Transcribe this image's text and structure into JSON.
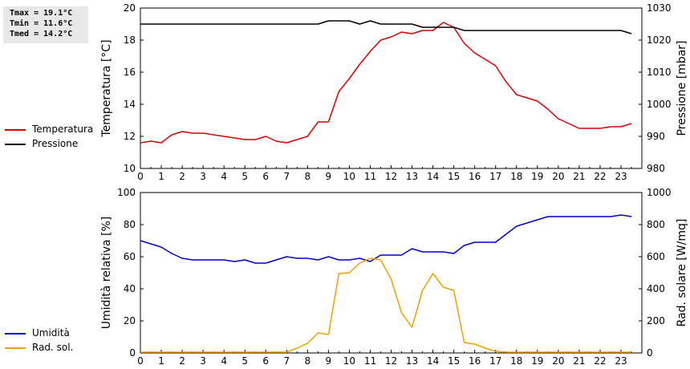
{
  "stats": {
    "tmax": "Tmax = 19.1°C",
    "tmin": "Tmin = 11.6°C",
    "tmed": "Tmed = 14.2°C"
  },
  "colors": {
    "temperatura": "#dd0000",
    "pressione": "#000000",
    "umidita": "#0000cc",
    "radsol": "#f0a000"
  },
  "legend_top": [
    {
      "label": "Temperatura",
      "color": "#dd0000"
    },
    {
      "label": "Pressione",
      "color": "#000000"
    }
  ],
  "legend_bottom": [
    {
      "label": "Umidità",
      "color": "#0000cc"
    },
    {
      "label": "Rad. sol.",
      "color": "#f0a000"
    }
  ],
  "chart_data": [
    {
      "type": "line",
      "title": "",
      "xlabel": "",
      "ylabel": "Temperatura [°C]",
      "ylabel_right": "Pressione [mbar]",
      "xlim": [
        0,
        24
      ],
      "xticks": [
        "0",
        "1",
        "2",
        "3",
        "4",
        "5",
        "6",
        "7",
        "8",
        "9",
        "10",
        "11",
        "12",
        "13",
        "14",
        "15",
        "16",
        "17",
        "18",
        "19",
        "20",
        "21",
        "22",
        "23"
      ],
      "ylim": [
        10,
        20
      ],
      "yticks": [
        "10",
        "12",
        "14",
        "16",
        "18",
        "20"
      ],
      "ylim_right": [
        980,
        1030
      ],
      "yticks_right": [
        "980",
        "990",
        "1000",
        "1010",
        "1020",
        "1030"
      ],
      "grid": false,
      "series": [
        {
          "name": "Temperatura",
          "axis": "left",
          "color": "#dd0000",
          "x": [
            0,
            0.5,
            1,
            1.5,
            2,
            2.5,
            3,
            3.5,
            4,
            4.5,
            5,
            5.5,
            6,
            6.5,
            7,
            7.5,
            8,
            8.5,
            9,
            9.5,
            10,
            10.5,
            11,
            11.5,
            12,
            12.5,
            13,
            13.5,
            14,
            14.5,
            15,
            15.5,
            16,
            16.5,
            17,
            17.5,
            18,
            18.5,
            19,
            19.5,
            20,
            20.5,
            21,
            21.5,
            22,
            22.5,
            23,
            23.5
          ],
          "y": [
            11.6,
            11.7,
            11.6,
            12.1,
            12.3,
            12.2,
            12.2,
            12.1,
            12.0,
            11.9,
            11.8,
            11.8,
            12.0,
            11.7,
            11.6,
            11.8,
            12.0,
            12.9,
            12.9,
            14.8,
            15.6,
            16.5,
            17.3,
            18.0,
            18.2,
            18.5,
            18.4,
            18.6,
            18.6,
            19.1,
            18.8,
            17.8,
            17.2,
            16.8,
            16.4,
            15.4,
            14.6,
            14.4,
            14.2,
            13.7,
            13.1,
            12.8,
            12.5,
            12.5,
            12.5,
            12.6,
            12.6,
            12.8
          ]
        },
        {
          "name": "Pressione",
          "axis": "right",
          "color": "#000000",
          "x": [
            0,
            0.5,
            1,
            1.5,
            2,
            2.5,
            3,
            3.5,
            4,
            4.5,
            5,
            5.5,
            6,
            6.5,
            7,
            7.5,
            8,
            8.5,
            9,
            9.5,
            10,
            10.5,
            11,
            11.5,
            12,
            12.5,
            13,
            13.5,
            14,
            14.5,
            15,
            15.5,
            16,
            16.5,
            17,
            17.5,
            18,
            18.5,
            19,
            19.5,
            20,
            20.5,
            21,
            21.5,
            22,
            22.5,
            23,
            23.5
          ],
          "y": [
            1025,
            1025,
            1025,
            1025,
            1025,
            1025,
            1025,
            1025,
            1025,
            1025,
            1025,
            1025,
            1025,
            1025,
            1025,
            1025,
            1025,
            1025,
            1026,
            1026,
            1026,
            1025,
            1026,
            1025,
            1025,
            1025,
            1025,
            1024,
            1024,
            1024,
            1024,
            1023,
            1023,
            1023,
            1023,
            1023,
            1023,
            1023,
            1023,
            1023,
            1023,
            1023,
            1023,
            1023,
            1023,
            1023,
            1023,
            1022
          ]
        }
      ]
    },
    {
      "type": "line",
      "title": "",
      "xlabel": "",
      "ylabel": "Umidità relativa [%]",
      "ylabel_right": "Rad. solare [W/mq]",
      "xlim": [
        0,
        24
      ],
      "xticks": [
        "0",
        "1",
        "2",
        "3",
        "4",
        "5",
        "6",
        "7",
        "8",
        "9",
        "10",
        "11",
        "12",
        "13",
        "14",
        "15",
        "16",
        "17",
        "18",
        "19",
        "20",
        "21",
        "22",
        "23"
      ],
      "ylim": [
        0,
        100
      ],
      "yticks": [
        "0",
        "20",
        "40",
        "60",
        "80",
        "100"
      ],
      "ylim_right": [
        0,
        1000
      ],
      "yticks_right": [
        "0",
        "200",
        "400",
        "600",
        "800",
        "1000"
      ],
      "grid": false,
      "series": [
        {
          "name": "Umidità",
          "axis": "left",
          "color": "#0000cc",
          "x": [
            0,
            0.5,
            1,
            1.5,
            2,
            2.5,
            3,
            3.5,
            4,
            4.5,
            5,
            5.5,
            6,
            6.5,
            7,
            7.5,
            8,
            8.5,
            9,
            9.5,
            10,
            10.5,
            11,
            11.5,
            12,
            12.5,
            13,
            13.5,
            14,
            14.5,
            15,
            15.5,
            16,
            16.5,
            17,
            17.5,
            18,
            18.5,
            19,
            19.5,
            20,
            20.5,
            21,
            21.5,
            22,
            22.5,
            23,
            23.5
          ],
          "y": [
            70,
            68,
            66,
            62,
            59,
            58,
            58,
            58,
            58,
            57,
            58,
            56,
            56,
            58,
            60,
            59,
            59,
            58,
            60,
            58,
            58,
            59,
            57,
            61,
            61,
            61,
            65,
            63,
            63,
            63,
            62,
            67,
            69,
            69,
            69,
            74,
            79,
            81,
            83,
            85,
            85,
            85,
            85,
            85,
            85,
            85,
            86,
            85
          ]
        },
        {
          "name": "Rad. sol.",
          "axis": "right",
          "color": "#f0a000",
          "x": [
            0,
            0.5,
            1,
            1.5,
            2,
            2.5,
            3,
            3.5,
            4,
            4.5,
            5,
            5.5,
            6,
            6.5,
            7,
            7.5,
            8,
            8.5,
            9,
            9.5,
            10,
            10.5,
            11,
            11.5,
            12,
            12.5,
            13,
            13.5,
            14,
            14.5,
            15,
            15.5,
            16,
            16.5,
            17,
            17.5,
            18,
            18.5,
            19,
            19.5,
            20,
            20.5,
            21,
            21.5,
            22,
            22.5,
            23,
            23.5
          ],
          "y": [
            5,
            5,
            5,
            5,
            5,
            5,
            5,
            5,
            5,
            5,
            5,
            5,
            5,
            5,
            5,
            30,
            60,
            125,
            115,
            495,
            500,
            560,
            590,
            580,
            460,
            250,
            160,
            390,
            495,
            410,
            390,
            65,
            55,
            30,
            10,
            5,
            5,
            5,
            5,
            5,
            5,
            5,
            5,
            5,
            5,
            5,
            5,
            5
          ]
        }
      ]
    }
  ]
}
